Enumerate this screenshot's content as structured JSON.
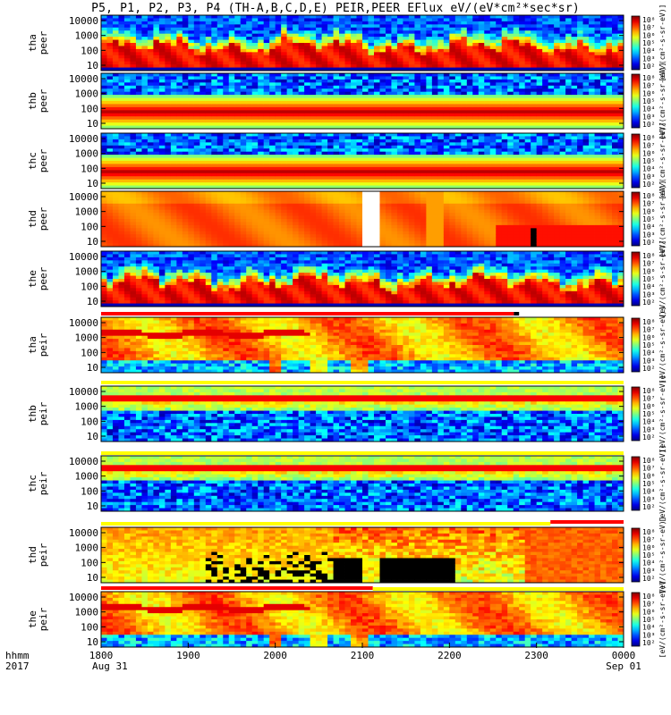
{
  "title": "P5, P1, P2, P3, P4 (TH-A,B,C,D,E) PEIR,PEER EFlux eV/(eV*cm²*sec*sr)",
  "chart_data": {
    "type": "heatmap",
    "x": {
      "ticks": [
        "1800",
        "1900",
        "2000",
        "2100",
        "2200",
        "2300",
        "0000"
      ],
      "tick_hours": [
        18,
        19,
        20,
        21,
        22,
        23,
        24
      ],
      "range_hours": [
        18,
        24
      ],
      "date_labels": {
        "start": "Aug 31",
        "end": "Sep 01"
      },
      "corner_label": [
        "hhmm",
        "2017"
      ]
    },
    "colorbar": {
      "label": "[eV/(cm²-s-sr-eV)]",
      "ticks": [
        "10⁸",
        "10⁷",
        "10⁶",
        "10⁵",
        "10⁴",
        "10³",
        "10²"
      ]
    },
    "panels": [
      {
        "probe": "tha",
        "species": "peer",
        "yticks": [
          "10000",
          "1000",
          "100",
          "10"
        ],
        "style": "electron",
        "base_band": [
          0.72,
          0.95
        ],
        "noise_top": true
      },
      {
        "probe": "thb",
        "species": "peer",
        "yticks": [
          "10000",
          "1000",
          "100",
          "10"
        ],
        "style": "smooth",
        "base_band": [
          0.45,
          0.95
        ],
        "noise_top": false
      },
      {
        "probe": "thc",
        "species": "peer",
        "yticks": [
          "10000",
          "1000",
          "100",
          "10"
        ],
        "style": "smooth",
        "base_band": [
          0.55,
          0.95
        ],
        "noise_top": true
      },
      {
        "probe": "thd",
        "species": "peer",
        "yticks": [
          "10000",
          "1000",
          "100",
          "10"
        ],
        "style": "flat",
        "base_band": [
          0.0,
          1.0
        ],
        "noise_top": false
      },
      {
        "probe": "the",
        "species": "peer",
        "yticks": [
          "10000",
          "1000",
          "100",
          "10"
        ],
        "style": "electron",
        "base_band": [
          0.7,
          0.95
        ],
        "noise_top": true
      },
      {
        "probe": "tha",
        "species": "peir",
        "yticks": [
          "10000",
          "1000",
          "100",
          "10"
        ],
        "style": "ion",
        "base_band": [
          0.0,
          0.6
        ],
        "noise_top": false
      },
      {
        "probe": "thb",
        "species": "peir",
        "yticks": [
          "10000",
          "1000",
          "100",
          "10"
        ],
        "style": "ion_quiet",
        "base_band": [
          0.0,
          0.3
        ],
        "noise_top": false
      },
      {
        "probe": "thc",
        "species": "peir",
        "yticks": [
          "10000",
          "1000",
          "100",
          "10"
        ],
        "style": "ion_quiet",
        "base_band": [
          0.0,
          0.3
        ],
        "noise_top": false
      },
      {
        "probe": "thd",
        "species": "peir",
        "yticks": [
          "10000",
          "1000",
          "100",
          "10"
        ],
        "style": "ion_d",
        "base_band": [
          0.0,
          0.4
        ],
        "noise_top": false
      },
      {
        "probe": "the",
        "species": "peir",
        "yticks": [
          "10000",
          "1000",
          "100",
          "10"
        ],
        "style": "ion",
        "base_band": [
          0.0,
          0.6
        ],
        "noise_top": false
      }
    ]
  }
}
